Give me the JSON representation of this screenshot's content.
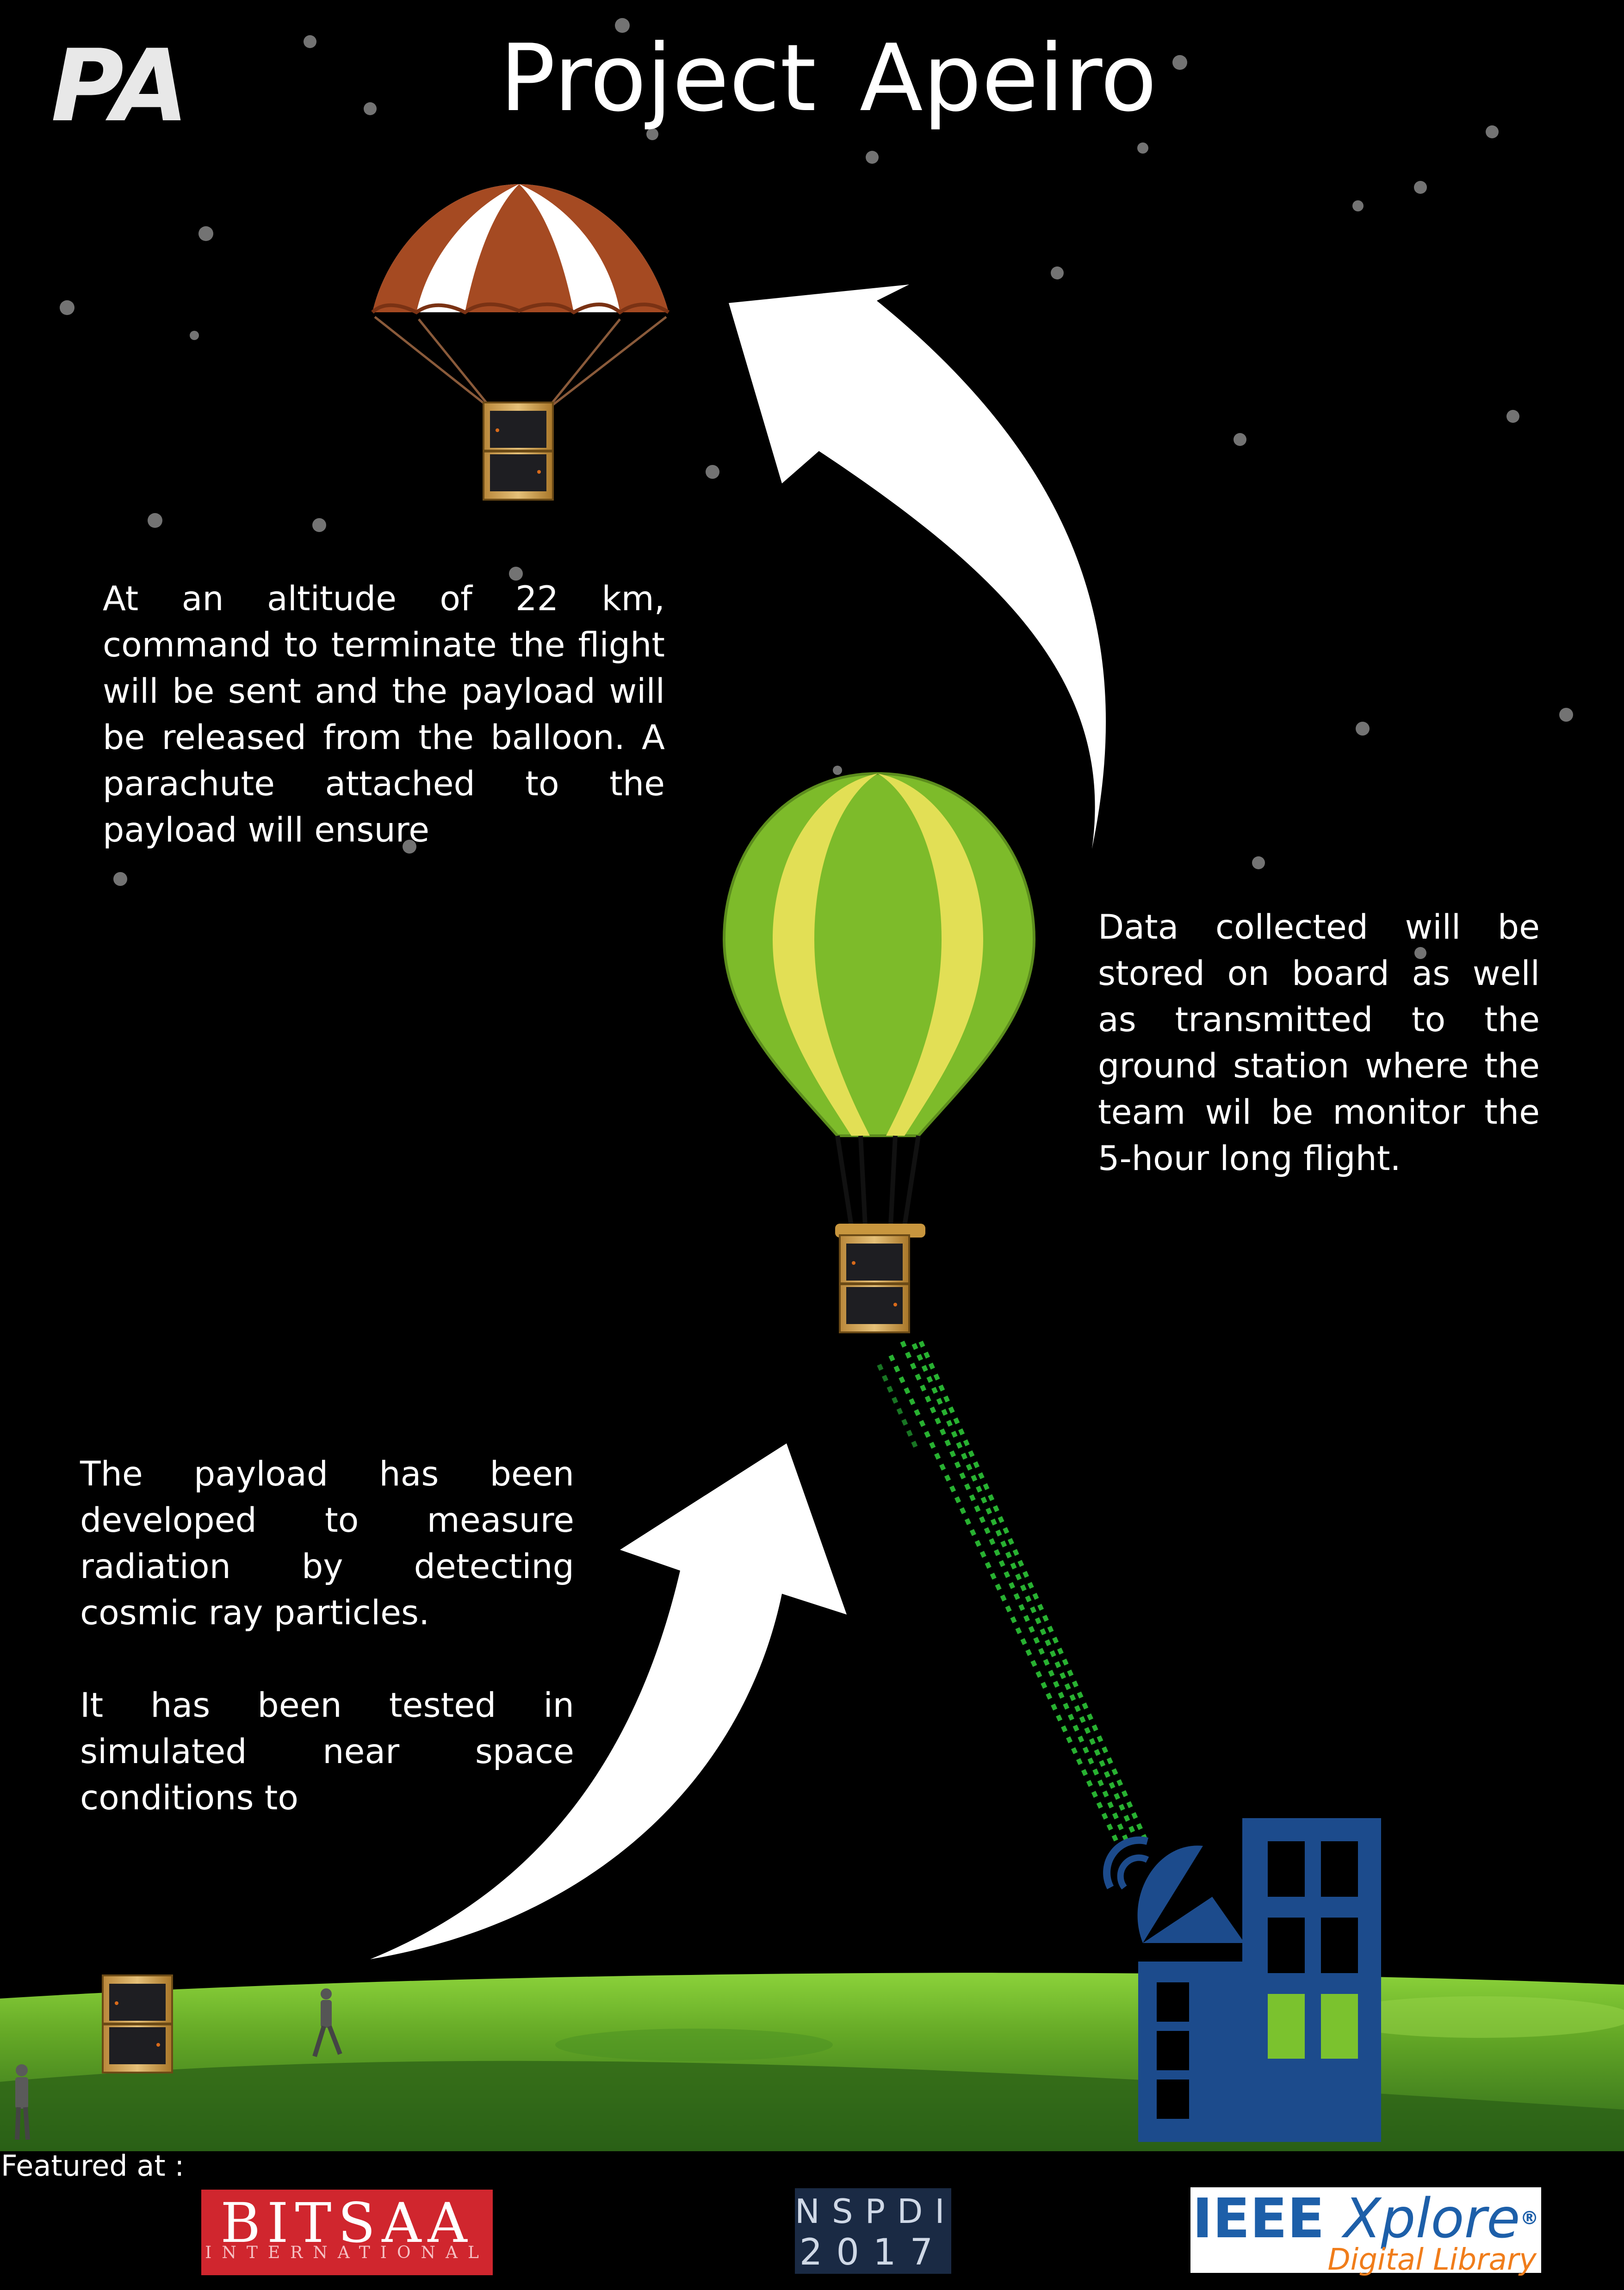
{
  "header": {
    "logo_text": "PA",
    "title": "Project Apeiro"
  },
  "paragraphs": {
    "top": "At an altitude of 22 km, command to terminate the flight will be sent and the payload will be released from the balloon. A parachute attached to the payload will ensure",
    "right": "Data collected will be stored on board as well as transmitted to the ground station where the team wil be monitor the 5-hour long flight.",
    "left_line1": "The payload has been developed to measure radiation by detecting cosmic ray particles.",
    "left_line2": "It has been tested in simulated near space conditions to"
  },
  "footer": {
    "featured_label": "Featured at :",
    "bitsaa_main": "BITSAA",
    "bitsaa_sub": "INTERNATIONAL",
    "nspdi_top": "NSPDI",
    "nspdi_bottom": "2017",
    "ieee_brand": "IEEE",
    "ieee_product": "Xplore",
    "ieee_reg": "®",
    "ieee_sub": "Digital Library"
  },
  "colors": {
    "background": "#000000",
    "grass_light": "#7bc22e",
    "grass_dark": "#2e6b18",
    "balloon_green": "#7dbb2a",
    "balloon_yellow": "#e2df55",
    "parachute_brown": "#a54a22",
    "station_blue": "#1c4b8c",
    "data_stream_green": "#2fd13a"
  },
  "icons": {
    "parachute": "parachute-icon",
    "balloon": "hot-air-balloon-icon",
    "payload": "cubesat-payload-icon",
    "ground_station": "ground-station-icon",
    "person": "person-icon"
  }
}
